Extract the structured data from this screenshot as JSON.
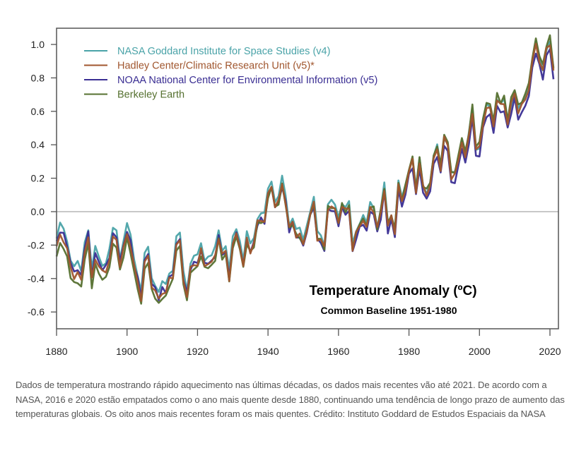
{
  "chart_data": {
    "type": "line",
    "title": "Temperature Anomaly (ºC)",
    "subtitle": "Common Baseline 1951-1980",
    "xlabel": "",
    "ylabel": "",
    "xlim": [
      1880,
      2022
    ],
    "ylim": [
      -0.72,
      1.1
    ],
    "x_ticks": [
      1880,
      1900,
      1920,
      1940,
      1960,
      1980,
      2000,
      2020
    ],
    "y_ticks": [
      1.0,
      0.8,
      0.6,
      0.4,
      0.2,
      0.0,
      -0.2,
      -0.4,
      -0.6
    ],
    "y_tick_labels": [
      "1.0",
      "0.8",
      "0.6",
      "0.4",
      "0.2",
      "0.0",
      "-0.2",
      "-0.4",
      "-0.6"
    ],
    "reference_line": 0.0,
    "grid": false,
    "legend_position": "top-left",
    "x_start": 1880,
    "base": [
      -0.16,
      -0.08,
      -0.11,
      -0.17,
      -0.28,
      -0.33,
      -0.31,
      -0.36,
      -0.17,
      -0.1,
      -0.35,
      -0.22,
      -0.27,
      -0.31,
      -0.3,
      -0.23,
      -0.11,
      -0.11,
      -0.27,
      -0.17,
      -0.08,
      -0.15,
      -0.28,
      -0.37,
      -0.47,
      -0.26,
      -0.22,
      -0.39,
      -0.43,
      -0.48,
      -0.43,
      -0.44,
      -0.36,
      -0.34,
      -0.15,
      -0.14,
      -0.36,
      -0.46,
      -0.3,
      -0.27,
      -0.27,
      -0.19,
      -0.28,
      -0.26,
      -0.27,
      -0.22,
      -0.11,
      -0.22,
      -0.2,
      -0.36,
      -0.16,
      -0.1,
      -0.16,
      -0.29,
      -0.13,
      -0.2,
      -0.15,
      -0.03,
      -0.01,
      -0.02,
      0.13,
      0.19,
      0.07,
      0.09,
      0.2,
      0.09,
      -0.07,
      -0.03,
      -0.11,
      -0.11,
      -0.17,
      -0.07,
      0.01,
      0.08,
      -0.13,
      -0.14,
      -0.19,
      0.05,
      0.06,
      0.03,
      -0.03,
      0.06,
      0.03,
      0.05,
      -0.2,
      -0.11,
      -0.06,
      -0.02,
      -0.08,
      0.05,
      0.03,
      -0.08,
      0.01,
      0.16,
      -0.07,
      -0.01,
      -0.1,
      0.18,
      0.07,
      0.16,
      0.26,
      0.32,
      0.14,
      0.31,
      0.16,
      0.12,
      0.18,
      0.32,
      0.39,
      0.27,
      0.45,
      0.41,
      0.22,
      0.23,
      0.31,
      0.44,
      0.33,
      0.46,
      0.61,
      0.38,
      0.39,
      0.54,
      0.63,
      0.62,
      0.53,
      0.68,
      0.64,
      0.66,
      0.54,
      0.65,
      0.72,
      0.61,
      0.64,
      0.68,
      0.75,
      0.9,
      1.01,
      0.92,
      0.85,
      0.98,
      1.02,
      0.85
    ],
    "series": [
      {
        "name": "NASA Goddard Institute for Space Studies (v4)",
        "color": "#4aa3a8",
        "offset_early": 0.0,
        "offset_recent": 0.0
      },
      {
        "name": "Hadley Center/Climatic Research Unit (v5)*",
        "color": "#a0562e",
        "offset_early": -0.06,
        "offset_recent": -0.01
      },
      {
        "name": "NOAA National Center for Environmental Information (v5)",
        "color": "#3a2e93",
        "offset_early": -0.03,
        "offset_recent": -0.05
      },
      {
        "name": "Berkeley Earth",
        "color": "#55702f",
        "offset_early": -0.11,
        "offset_recent": 0.02
      }
    ]
  },
  "caption": "Dados de temperatura mostrando rápido aquecimento nas últimas décadas, os dados mais recentes vão até 2021. De acordo com a NASA, 2016 e 2020 estão empatados como o ano mais quente desde 1880, continuando uma tendência de longo prazo de aumento das temperaturas globais. Os oito anos mais recentes foram os mais quentes. Crédito: Instituto Goddard de Estudos Espaciais da NASA"
}
